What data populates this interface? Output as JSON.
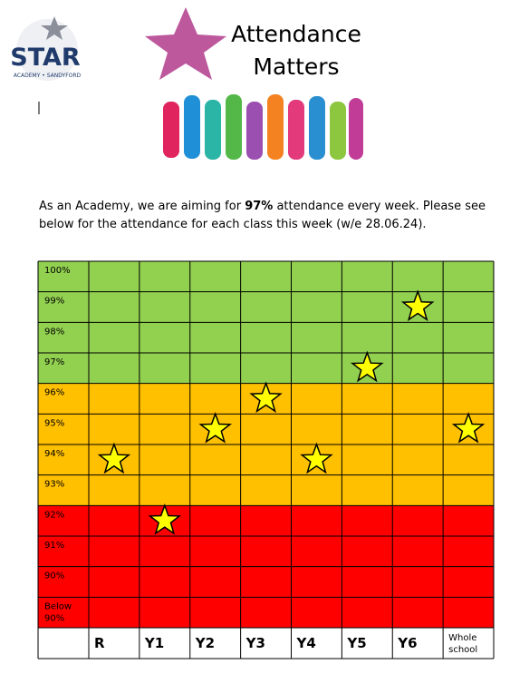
{
  "logo": {
    "name": "STAR",
    "sub": "ACADEMY • SANDYFORD"
  },
  "header": {
    "line1": "Attendance",
    "line2": "Matters"
  },
  "intro": {
    "before": "As an Academy, we are aiming for ",
    "bold": "97%",
    "after1": " attendance every week. Please see",
    "after2": "below for the attendance for each class this week (w/e 28.06.24)."
  },
  "chart_data": {
    "type": "star",
    "categories": [
      "R",
      "Y1",
      "Y2",
      "Y3",
      "Y4",
      "Y5",
      "Y6",
      "Whole school"
    ],
    "values": [
      94,
      92,
      95,
      96,
      94,
      97,
      99,
      95
    ],
    "color": "#ffff00",
    "ylim": [
      88.5,
      100.5
    ],
    "yticks": [
      {
        "value": 100,
        "label": "100%"
      },
      {
        "value": 99,
        "label": "99%"
      },
      {
        "value": 98,
        "label": "98%"
      },
      {
        "value": 97,
        "label": "97%"
      },
      {
        "value": 96,
        "label": "96%"
      },
      {
        "value": 95,
        "label": "95%"
      },
      {
        "value": 94,
        "label": "94%"
      },
      {
        "value": 93,
        "label": "93%"
      },
      {
        "value": 92,
        "label": "92%"
      },
      {
        "value": 91,
        "label": "91%"
      },
      {
        "value": 90,
        "label": "90%"
      },
      {
        "value": 89,
        "label": "Below 90%"
      }
    ],
    "zones": [
      {
        "min": 96.5,
        "max": 100.5,
        "color": "#92d050"
      },
      {
        "min": 92.5,
        "max": 96.5,
        "color": "#ffc000"
      },
      {
        "min": 88.5,
        "max": 92.5,
        "color": "#ff0000"
      }
    ]
  }
}
